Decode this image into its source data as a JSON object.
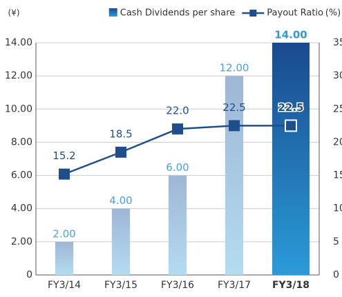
{
  "chart_data": {
    "type": "bar_line",
    "y_label": "(¥)",
    "y2_label": "(%)",
    "categories": [
      "FY3/14",
      "FY3/15",
      "FY3/16",
      "FY3/17",
      "FY3/18"
    ],
    "highlight_index": 4,
    "series": [
      {
        "name": "Cash Dividends per share",
        "color": "#a9c4e0",
        "highlight_color": "#1f5aa0",
        "label_color": "#4aa3d8",
        "values": [
          2,
          4,
          6,
          12,
          14
        ],
        "value_labels": [
          "2.00",
          "4.00",
          "6.00",
          "12.00",
          "14.00"
        ]
      },
      {
        "name": "Payout Ratio",
        "color": "#1f4e8c",
        "axis": "y2",
        "values": [
          15.2,
          18.5,
          22.0,
          22.5,
          22.5
        ],
        "value_labels": [
          "15.2",
          "18.5",
          "22.0",
          "22.5",
          "22.5"
        ]
      }
    ],
    "ylim": [
      0,
      14
    ],
    "yticks": [
      0,
      {
        "value": 2,
        "label": "2.00"
      },
      {
        "value": 4,
        "label": "4.00"
      },
      {
        "value": 6,
        "label": "6.00"
      },
      {
        "value": 8,
        "label": "8.00"
      },
      {
        "value": 10,
        "label": "10.00"
      },
      {
        "value": 12,
        "label": "12.00"
      },
      {
        "value": 14,
        "label": "14.00"
      }
    ],
    "y2lim": [
      0,
      35
    ],
    "y2ticks": [
      0,
      5,
      10,
      15,
      20,
      25,
      30,
      35
    ],
    "grid": true
  }
}
